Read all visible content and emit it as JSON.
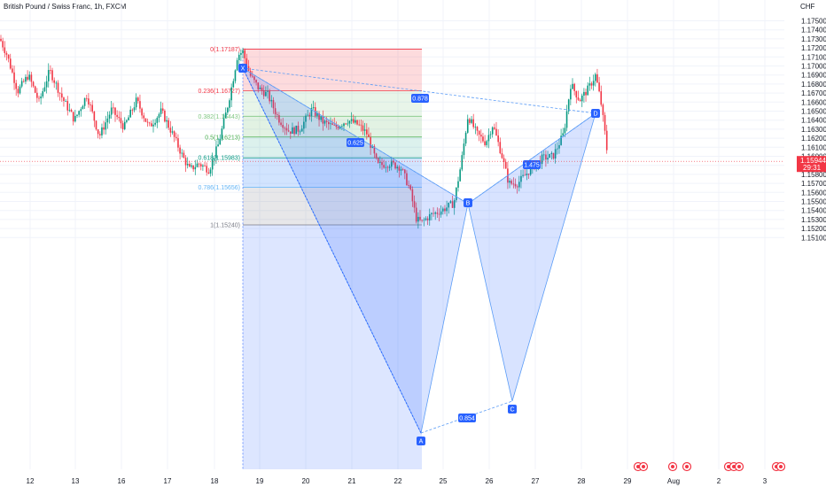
{
  "header": {
    "title": "British Pound / Swiss Franc, 1h, FXCM"
  },
  "chart_data": {
    "type": "candlestick",
    "symbol": "British Pound / Swiss Franc",
    "interval": "1h",
    "exchange": "FXCM",
    "currency": "CHF",
    "ylim": [
      1.1505,
      1.1762
    ],
    "yticks": [
      "1.17500",
      "1.17400",
      "1.17300",
      "1.17200",
      "1.17100",
      "1.17000",
      "1.16900",
      "1.16800",
      "1.16700",
      "1.16600",
      "1.16500",
      "1.16400",
      "1.16300",
      "1.16200",
      "1.16100",
      "1.16000",
      "1.15900",
      "1.15800",
      "1.15700",
      "1.15600",
      "1.15500",
      "1.15400",
      "1.15300",
      "1.15200",
      "1.15100"
    ],
    "xticks": [
      "12",
      "13",
      "16",
      "17",
      "18",
      "19",
      "20",
      "21",
      "22",
      "25",
      "26",
      "27",
      "28",
      "29",
      "Aug",
      "2",
      "3"
    ],
    "last_price": {
      "value": "1.15944",
      "countdown": "29:31",
      "color": "#f23645"
    },
    "fibonacci": [
      {
        "label": "0(1.17187)",
        "ratio": 0,
        "price": 1.17187,
        "color": "#f23645"
      },
      {
        "label": "0.236(1.16727)",
        "ratio": 0.236,
        "price": 1.16727,
        "color": "#f23645"
      },
      {
        "label": "0.382(1.16443)",
        "ratio": 0.382,
        "price": 1.16443,
        "color": "#81c784"
      },
      {
        "label": "0.5(1.16213)",
        "ratio": 0.5,
        "price": 1.16213,
        "color": "#4caf50"
      },
      {
        "label": "0.618(1.15983)",
        "ratio": 0.618,
        "price": 1.15983,
        "color": "#089981"
      },
      {
        "label": "0.786(1.15656)",
        "ratio": 0.786,
        "price": 1.15656,
        "color": "#64b5f6"
      },
      {
        "label": "1(1.15240)",
        "ratio": 1,
        "price": 1.1524,
        "color": "#787b86"
      }
    ],
    "harmonic_pattern": {
      "points": [
        {
          "label": "X",
          "t": 18.6,
          "price": 1.17187
        },
        {
          "label": "A",
          "t": 22.6,
          "price": 1.1524
        },
        {
          "label": "B",
          "t": 25.55,
          "price": 1.1647
        },
        {
          "label": "C",
          "t": 26.5,
          "price": 1.15445
        },
        {
          "label": "D",
          "t": 27.4,
          "price": 1.1695
        }
      ],
      "ratios": [
        {
          "text": "0.625",
          "t": 20.55,
          "price": 1.16857
        },
        {
          "text": "0.878",
          "t": 22.6,
          "price": 1.17068
        },
        {
          "text": "1.475",
          "t": 26.9,
          "price": 1.1673
        },
        {
          "text": "0.854",
          "t": 25.05,
          "price": 1.15396
        }
      ]
    },
    "price_range": [
      1.151,
      1.174
    ],
    "trend": "range 1.1525–1.1735; decline 18→22, rebound to 1.1695 on 28, drop to 1.1594"
  },
  "colors": {
    "up": "#089981",
    "down": "#f23645",
    "pattern_fill": "#2962ff",
    "pattern_line": "#5b9cf6",
    "label_bg": "#2962ff",
    "grid": "#f0f3fa"
  },
  "icons": [
    "event-icon",
    "event-icon",
    "event-icon",
    "event-icon",
    "event-icon"
  ]
}
